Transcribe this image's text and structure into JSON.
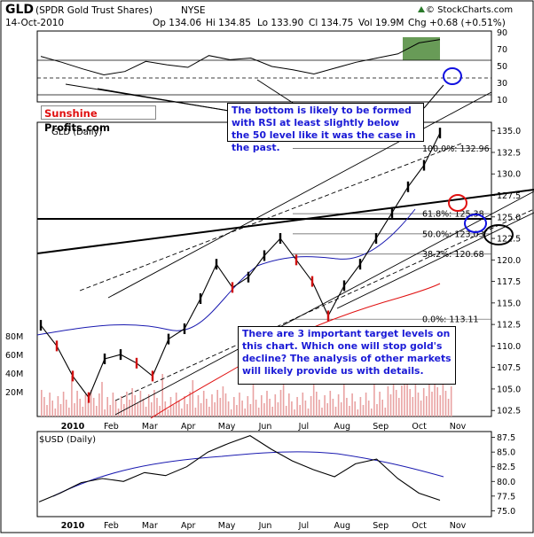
{
  "header": {
    "symbol": "GLD",
    "name": "(SPDR Gold Trust Shares)",
    "exchange": "NYSE",
    "date": "14-Oct-2010",
    "open": "Op 134.06",
    "high": "Hi 134.85",
    "low": "Lo 133.90",
    "close": "Cl 134.75",
    "volume": "Vol 19.9M",
    "change": "Chg +0.68 (+0.51%)",
    "watermark": "© StockCharts.com",
    "arrow_icon": "up-triangle-icon"
  },
  "logo": {
    "part1": "Sunshine",
    "part2": " Profits.com"
  },
  "callouts": {
    "rsi_note": "The bottom is likely to be formed with RSI at least slightly below the 50 level like it was the case in the past.",
    "targets_note": "There are 3 important target levels on this chart. Which one will stop gold's decline? The analysis of other markets will likely provide us with details."
  },
  "panels": {
    "main_title": "GLD (Daily)",
    "usd_title": "$USD (Daily)"
  },
  "chart_data": [
    {
      "type": "line",
      "panel": "RSI",
      "y_ticks": [
        "90",
        "70",
        "50",
        "30",
        "10"
      ],
      "ylim": [
        10,
        90
      ],
      "reference_levels": [
        70,
        50,
        30
      ],
      "x": [
        "Jan",
        "Jan",
        "Feb",
        "Feb",
        "Mar",
        "Mar",
        "Apr",
        "Apr",
        "May",
        "May",
        "Jun",
        "Jun",
        "Jul",
        "Jul",
        "Aug",
        "Aug",
        "Sep",
        "Sep",
        "Oct",
        "Oct"
      ],
      "values": [
        62,
        55,
        47,
        40,
        44,
        56,
        52,
        49,
        63,
        58,
        60,
        50,
        46,
        41,
        48,
        55,
        60,
        65,
        78,
        82
      ]
    },
    {
      "type": "line",
      "panel": "GLD (Daily)",
      "y_ticks": [
        "135.0",
        "132.5",
        "130.0",
        "127.5",
        "125.0",
        "122.5",
        "120.0",
        "117.5",
        "115.0",
        "112.5",
        "110.0",
        "107.5",
        "105.0",
        "102.5"
      ],
      "ylim": [
        101.8,
        136.0
      ],
      "x_ticks": [
        "2010",
        "Feb",
        "Mar",
        "Apr",
        "May",
        "Jun",
        "Jul",
        "Aug",
        "Sep",
        "Oct",
        "Nov"
      ],
      "volume_ticks": [
        "80M",
        "60M",
        "40M",
        "20M"
      ],
      "fibonacci": [
        {
          "label": "100.0%: 132.96",
          "value": 132.96
        },
        {
          "label": "61.8%: 125.38",
          "value": 125.38
        },
        {
          "label": "50.0%: 123.03",
          "value": 123.03
        },
        {
          "label": "38.2%: 120.68",
          "value": 120.68
        },
        {
          "label": "0.0%: 113.11",
          "value": 113.11
        }
      ],
      "price_path": [
        [
          "Jan 4",
          112.4
        ],
        [
          "Jan 12",
          110.0
        ],
        [
          "Jan 25",
          106.5
        ],
        [
          "Feb 5",
          104.0
        ],
        [
          "Feb 16",
          108.5
        ],
        [
          "Feb 26",
          109.0
        ],
        [
          "Mar 10",
          108.0
        ],
        [
          "Mar 24",
          106.5
        ],
        [
          "Apr 8",
          110.8
        ],
        [
          "Apr 20",
          112.0
        ],
        [
          "May 4",
          115.5
        ],
        [
          "May 13",
          119.5
        ],
        [
          "May 24",
          116.8
        ],
        [
          "Jun 3",
          118.0
        ],
        [
          "Jun 14",
          120.5
        ],
        [
          "Jun 22",
          122.5
        ],
        [
          "Jun 30",
          120.0
        ],
        [
          "Jul 12",
          117.5
        ],
        [
          "Jul 27",
          113.5
        ],
        [
          "Aug 10",
          117.0
        ],
        [
          "Aug 24",
          119.5
        ],
        [
          "Sep 7",
          122.5
        ],
        [
          "Sep 20",
          125.5
        ],
        [
          "Oct 1",
          128.5
        ],
        [
          "Oct 8",
          131.0
        ],
        [
          "Oct 14",
          134.75
        ]
      ]
    },
    {
      "type": "line",
      "panel": "$USD (Daily)",
      "y_ticks": [
        "87.5",
        "85.0",
        "82.5",
        "80.0",
        "77.5",
        "75.0"
      ],
      "ylim": [
        74.0,
        88.5
      ],
      "x_ticks": [
        "2010",
        "Feb",
        "Mar",
        "Apr",
        "May",
        "Jun",
        "Jul",
        "Aug",
        "Sep",
        "Oct",
        "Nov"
      ],
      "price_path": [
        [
          "Jan",
          76.5
        ],
        [
          "Jan",
          78.0
        ],
        [
          "Feb",
          79.8
        ],
        [
          "Feb",
          80.5
        ],
        [
          "Mar",
          80.0
        ],
        [
          "Mar",
          81.5
        ],
        [
          "Apr",
          81.0
        ],
        [
          "Apr",
          82.5
        ],
        [
          "May",
          85.0
        ],
        [
          "May",
          86.5
        ],
        [
          "Jun",
          87.8
        ],
        [
          "Jun",
          85.5
        ],
        [
          "Jul",
          83.5
        ],
        [
          "Jul",
          82.0
        ],
        [
          "Aug",
          80.8
        ],
        [
          "Aug",
          83.0
        ],
        [
          "Sep",
          83.8
        ],
        [
          "Sep",
          80.5
        ],
        [
          "Oct",
          78.0
        ],
        [
          "Oct",
          76.8
        ]
      ]
    }
  ]
}
